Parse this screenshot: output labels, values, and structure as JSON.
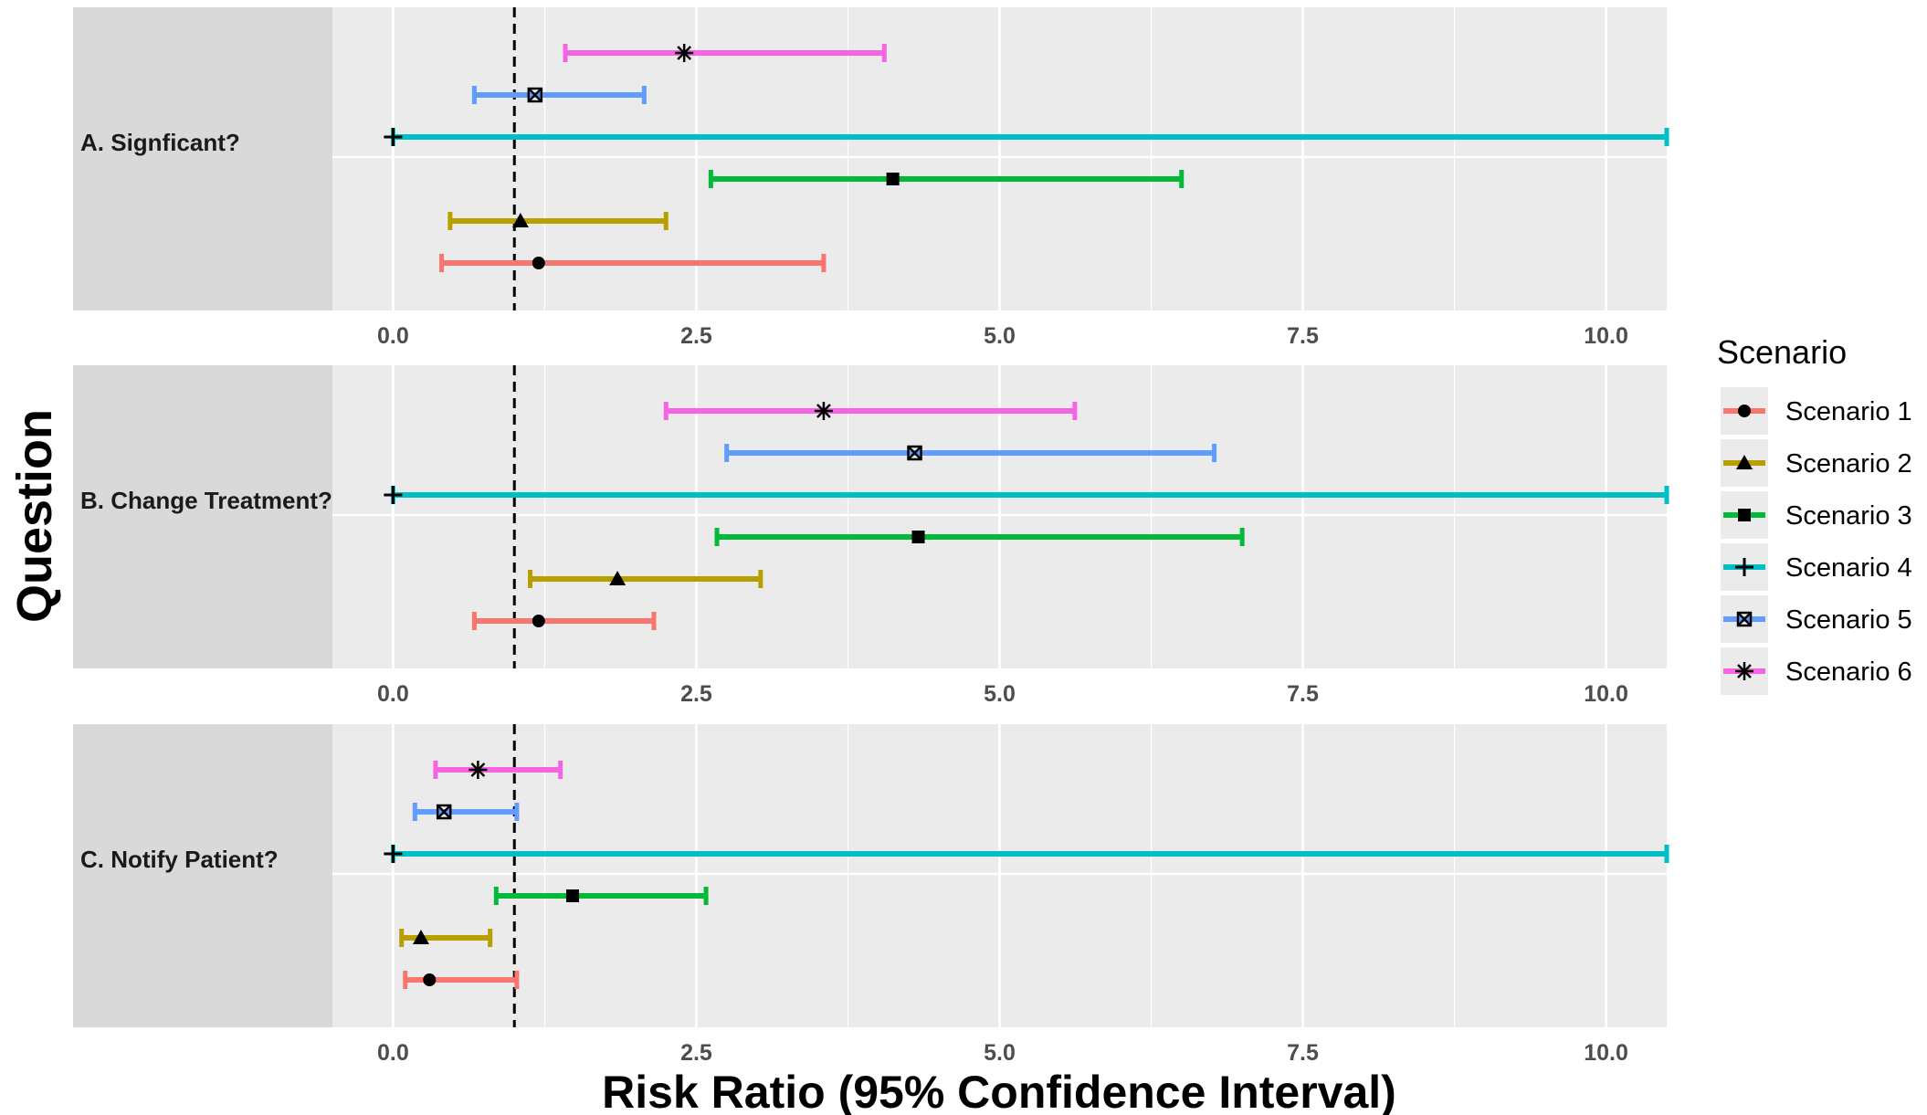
{
  "chart_data": {
    "type": "forest",
    "title": "",
    "xlabel": "Risk Ratio (95% Confidence Interval)",
    "ylabel": "Question",
    "xlim": [
      -0.5,
      10.5
    ],
    "x_ticks": [
      "0.0",
      "2.5",
      "5.0",
      "7.5",
      "10.0"
    ],
    "x_tick_values": [
      0,
      2.5,
      5,
      7.5,
      10
    ],
    "reference_line": 1.0,
    "legend": {
      "title": "Scenario",
      "position": "right"
    },
    "series": [
      {
        "name": "Scenario 1",
        "color": "#F8766D",
        "shape": "circle"
      },
      {
        "name": "Scenario 2",
        "color": "#B79F00",
        "shape": "triangle"
      },
      {
        "name": "Scenario 3",
        "color": "#00BA38",
        "shape": "square"
      },
      {
        "name": "Scenario 4",
        "color": "#00BFC4",
        "shape": "plus"
      },
      {
        "name": "Scenario 5",
        "color": "#619CFF",
        "shape": "boxed-x"
      },
      {
        "name": "Scenario 6",
        "color": "#F564E3",
        "shape": "asterisk"
      }
    ],
    "panels": [
      {
        "label": "A. Signficant?",
        "estimates": [
          {
            "scenario": "Scenario 1",
            "rr": 1.2,
            "lower": 0.4,
            "upper": 3.55
          },
          {
            "scenario": "Scenario 2",
            "rr": 1.05,
            "lower": 0.47,
            "upper": 2.25
          },
          {
            "scenario": "Scenario 3",
            "rr": 4.12,
            "lower": 2.62,
            "upper": 6.5
          },
          {
            "scenario": "Scenario 4",
            "rr": 0.0,
            "lower": 0.0,
            "upper": 10.5
          },
          {
            "scenario": "Scenario 5",
            "rr": 1.17,
            "lower": 0.67,
            "upper": 2.07
          },
          {
            "scenario": "Scenario 6",
            "rr": 2.4,
            "lower": 1.42,
            "upper": 4.05
          }
        ]
      },
      {
        "label": "B. Change Treatment?",
        "estimates": [
          {
            "scenario": "Scenario 1",
            "rr": 1.2,
            "lower": 0.67,
            "upper": 2.15
          },
          {
            "scenario": "Scenario 2",
            "rr": 1.85,
            "lower": 1.13,
            "upper": 3.03
          },
          {
            "scenario": "Scenario 3",
            "rr": 4.33,
            "lower": 2.67,
            "upper": 7.0
          },
          {
            "scenario": "Scenario 4",
            "rr": 0.0,
            "lower": 0.0,
            "upper": 10.5
          },
          {
            "scenario": "Scenario 5",
            "rr": 4.3,
            "lower": 2.75,
            "upper": 6.77
          },
          {
            "scenario": "Scenario 6",
            "rr": 3.55,
            "lower": 2.25,
            "upper": 5.62
          }
        ]
      },
      {
        "label": "C. Notify Patient?",
        "estimates": [
          {
            "scenario": "Scenario 1",
            "rr": 0.3,
            "lower": 0.1,
            "upper": 1.02
          },
          {
            "scenario": "Scenario 2",
            "rr": 0.23,
            "lower": 0.07,
            "upper": 0.8
          },
          {
            "scenario": "Scenario 3",
            "rr": 1.48,
            "lower": 0.85,
            "upper": 2.58
          },
          {
            "scenario": "Scenario 4",
            "rr": 0.0,
            "lower": 0.0,
            "upper": 10.5
          },
          {
            "scenario": "Scenario 5",
            "rr": 0.42,
            "lower": 0.18,
            "upper": 1.02
          },
          {
            "scenario": "Scenario 6",
            "rr": 0.7,
            "lower": 0.35,
            "upper": 1.38
          }
        ]
      }
    ]
  }
}
